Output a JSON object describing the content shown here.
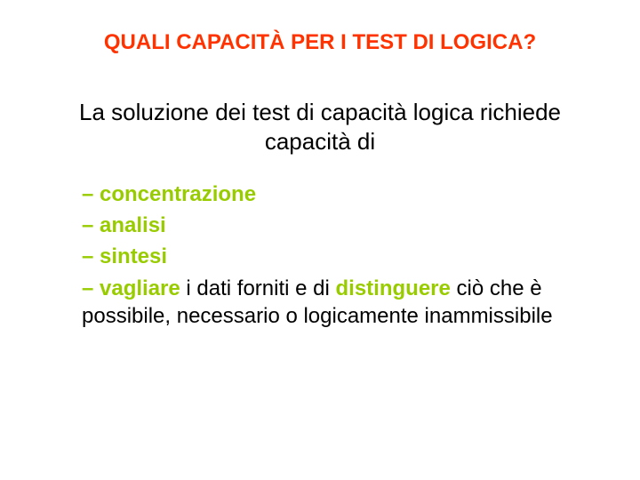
{
  "title": {
    "text": "QUALI CAPACITÀ PER I TEST DI LOGICA?",
    "color": "#ff3300",
    "fontsize": 24
  },
  "subtitle": {
    "text": "La soluzione dei test di capacità logica richiede capacità di",
    "color": "#000000",
    "fontsize": 26
  },
  "list": {
    "dash_color": "#99cc00",
    "bold_color": "#99cc00",
    "text_color": "#000000",
    "fontsize": 24,
    "items": [
      {
        "bold": "concentrazione",
        "rest": ""
      },
      {
        "bold": "analisi",
        "rest": ""
      },
      {
        "bold": "sintesi",
        "rest": ""
      },
      {
        "bold": "vagliare",
        "rest": " i dati forniti e di ",
        "bold2": "distinguere",
        "rest2": " ciò che è possibile, necessario o logicamente inammissibile"
      }
    ]
  },
  "background_color": "#ffffff"
}
